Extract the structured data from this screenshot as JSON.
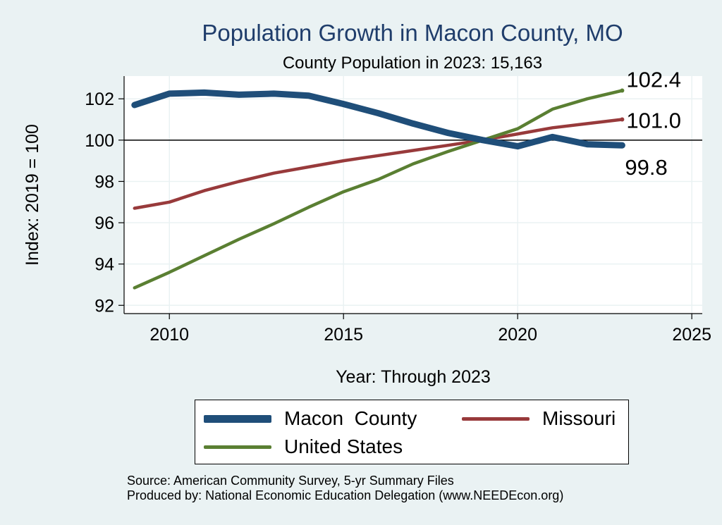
{
  "chart_data": {
    "type": "line",
    "title": "Population Growth in Macon County, MO",
    "subtitle": "County Population in 2023: 15,163",
    "xlabel": "Year: Through 2023",
    "ylabel": "Index: 2019 = 100",
    "xlim": [
      2008.7,
      2025.3
    ],
    "ylim": [
      91.6,
      103.1
    ],
    "xticks": [
      2010,
      2015,
      2020,
      2025
    ],
    "yticks": [
      92,
      94,
      96,
      98,
      100,
      102
    ],
    "reference_line_y": 100,
    "grid": true,
    "legend_position": "bottom",
    "x": [
      2009,
      2010,
      2011,
      2012,
      2013,
      2014,
      2015,
      2016,
      2017,
      2018,
      2019,
      2020,
      2021,
      2022,
      2023
    ],
    "series": [
      {
        "name": "Macon  County",
        "color": "#1f4e79",
        "values": [
          101.7,
          102.25,
          102.3,
          102.2,
          102.25,
          102.15,
          101.75,
          101.3,
          100.8,
          100.35,
          100.0,
          99.7,
          100.15,
          99.8,
          99.75
        ],
        "end_label": "99.8"
      },
      {
        "name": "Missouri",
        "color": "#983a3b",
        "values": [
          96.7,
          97.0,
          97.55,
          98.0,
          98.4,
          98.7,
          99.0,
          99.25,
          99.5,
          99.75,
          100.0,
          100.3,
          100.6,
          100.8,
          101.0
        ],
        "end_label": "101.0"
      },
      {
        "name": "United States",
        "color": "#5a7f32",
        "values": [
          92.85,
          93.6,
          94.4,
          95.2,
          95.95,
          96.75,
          97.5,
          98.1,
          98.85,
          99.45,
          100.0,
          100.55,
          101.5,
          102.0,
          102.4
        ],
        "end_label": "102.4"
      }
    ]
  },
  "source": {
    "line1": "Source: American Community Survey, 5-yr Summary Files",
    "line2": "Produced by: National Economic Education Delegation (www.NEEDEcon.org)"
  }
}
